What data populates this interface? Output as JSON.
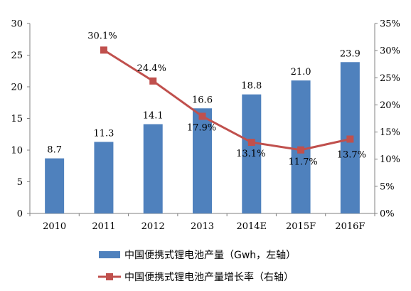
{
  "chart_data": {
    "type": "bar+line",
    "categories": [
      "2010",
      "2011",
      "2012",
      "2013",
      "2014E",
      "2015F",
      "2016F"
    ],
    "series": [
      {
        "name": "中国便携式锂电池产量（Gwh，左轴）",
        "type": "bar",
        "axis": "left",
        "values": [
          8.7,
          11.3,
          14.1,
          16.6,
          18.8,
          21.0,
          23.9
        ],
        "labels": [
          "8.7",
          "11.3",
          "14.1",
          "16.6",
          "18.8",
          "21.0",
          "23.9"
        ]
      },
      {
        "name": "中国便携式锂电池产量增长率（右轴）",
        "type": "line",
        "axis": "right",
        "values": [
          null,
          30.1,
          24.4,
          17.9,
          13.1,
          11.7,
          13.7
        ],
        "labels": [
          "",
          "30.1%",
          "24.4%",
          "17.9%",
          "13.1%",
          "11.7%",
          "13.7%"
        ]
      }
    ],
    "y_left": {
      "range": [
        0,
        30
      ],
      "ticks": [
        "0",
        "5",
        "10",
        "15",
        "20",
        "25",
        "30"
      ]
    },
    "y_right": {
      "range": [
        0,
        35
      ],
      "ticks": [
        "0%",
        "5%",
        "10%",
        "15%",
        "20%",
        "25%",
        "30%",
        "35%"
      ]
    },
    "legend_position": "bottom",
    "grid": false,
    "colors": {
      "bar": "#4f81bd",
      "line": "#c0504d",
      "axis": "#808080"
    }
  }
}
